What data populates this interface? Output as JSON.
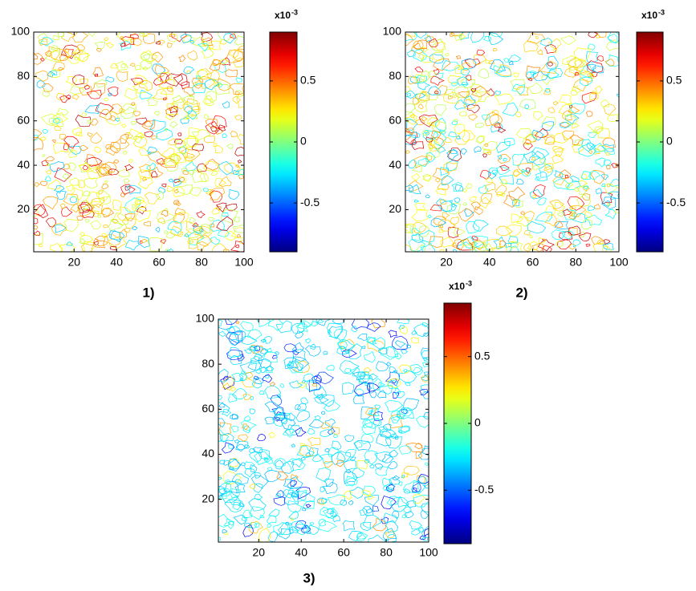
{
  "chart_data": [
    {
      "type": "contour",
      "caption": "1)",
      "xlim": [
        1,
        100
      ],
      "ylim": [
        1,
        100
      ],
      "xticks": [
        20,
        40,
        60,
        80,
        100
      ],
      "yticks": [
        20,
        40,
        60,
        80,
        100
      ],
      "colormap": "jet",
      "colorbar": {
        "clim": [
          -0.9,
          0.9
        ],
        "ticks": [
          -0.5,
          0,
          0.5
        ],
        "label_base": "x10",
        "label_exponent": "-3"
      }
    },
    {
      "type": "contour",
      "caption": "2)",
      "xlim": [
        1,
        100
      ],
      "ylim": [
        1,
        100
      ],
      "xticks": [
        20,
        40,
        60,
        80,
        100
      ],
      "yticks": [
        20,
        40,
        60,
        80,
        100
      ],
      "colormap": "jet",
      "colorbar": {
        "clim": [
          -0.9,
          0.9
        ],
        "ticks": [
          -0.5,
          0,
          0.5
        ],
        "label_base": "x10",
        "label_exponent": "-3"
      }
    },
    {
      "type": "contour",
      "caption": "3)",
      "xlim": [
        1,
        100
      ],
      "ylim": [
        1,
        100
      ],
      "xticks": [
        20,
        40,
        60,
        80,
        100
      ],
      "yticks": [
        20,
        40,
        60,
        80,
        100
      ],
      "colormap": "jet",
      "colorbar": {
        "clim": [
          -0.9,
          0.9
        ],
        "ticks": [
          -0.5,
          0,
          0.5
        ],
        "label_base": "x10",
        "label_exponent": "-3"
      }
    }
  ]
}
